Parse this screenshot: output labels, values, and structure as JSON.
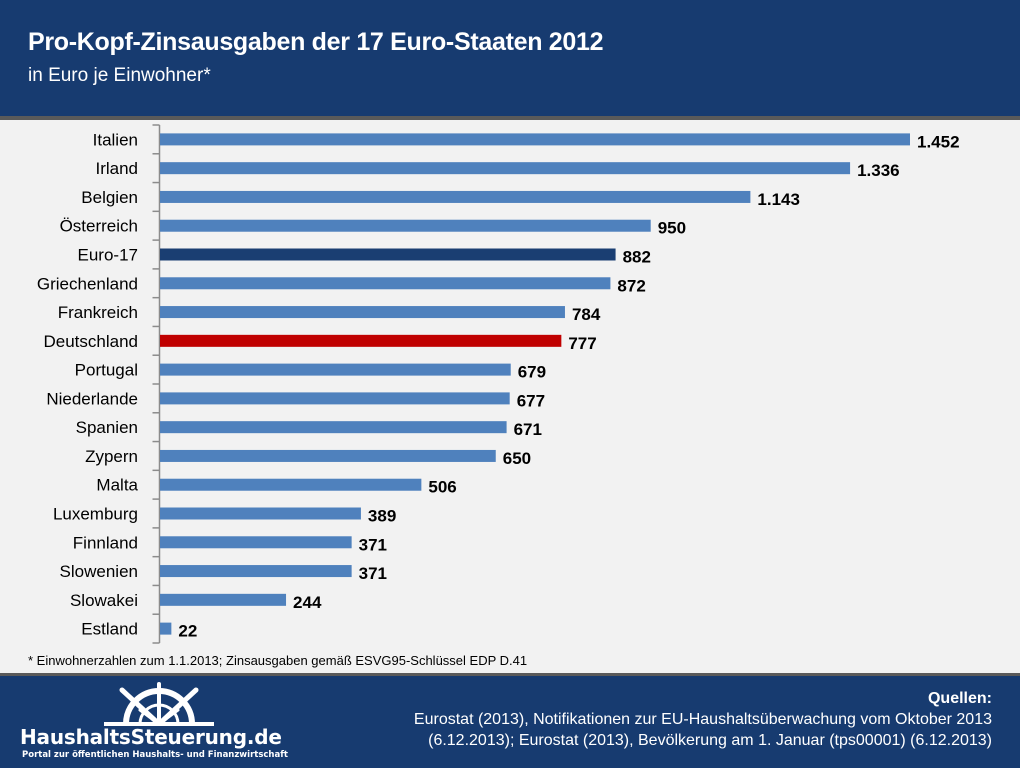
{
  "header": {
    "title": "Pro-Kopf-Zinsausgaben der 17 Euro-Staaten 2012",
    "subtitle": "in Euro je Einwohner*"
  },
  "chart_data": {
    "type": "bar",
    "orientation": "horizontal",
    "title": "Pro-Kopf-Zinsausgaben der 17 Euro-Staaten 2012",
    "subtitle": "in Euro je Einwohner*",
    "xlabel": "",
    "ylabel": "",
    "xlim": [
      0,
      1452
    ],
    "grid": false,
    "legend": "none",
    "categories": [
      "Italien",
      "Irland",
      "Belgien",
      "Österreich",
      "Euro-17",
      "Griechenland",
      "Frankreich",
      "Deutschland",
      "Portugal",
      "Niederlande",
      "Spanien",
      "Zypern",
      "Malta",
      "Luxemburg",
      "Finnland",
      "Slowenien",
      "Slowakei",
      "Estland"
    ],
    "values": [
      1452,
      1336,
      1143,
      950,
      882,
      872,
      784,
      777,
      679,
      677,
      671,
      650,
      506,
      389,
      371,
      371,
      244,
      22
    ],
    "value_labels": [
      "1.452",
      "1.336",
      "1.143",
      "950",
      "882",
      "872",
      "784",
      "777",
      "679",
      "677",
      "671",
      "650",
      "506",
      "389",
      "371",
      "371",
      "244",
      "22"
    ],
    "highlight": {
      "Euro-17": "#1a3e72",
      "Deutschland": "#c00000"
    },
    "default_color": "#4f81bd"
  },
  "footnote": "* Einwohnerzahlen  zum 1.1.2013; Zinsausgaben  gemäß ESVG95-Schlüssel  EDP D.41",
  "footer": {
    "logo_name": "HaushaltsSteuerung.de",
    "logo_tagline": "Portal zur öffentlichen Haushalts- und Finanzwirtschaft",
    "sources_title": "Quellen:",
    "sources_line1": "Eurostat (2013), Notifikationen zur EU-Haushaltsüberwachung vom Oktober 2013",
    "sources_line2": "(6.12.2013); Eurostat (2013), Bevölkerung am 1. Januar (tps00001) (6.12.2013)"
  },
  "colors": {
    "header_bg": "#173b70",
    "chart_bg": "#f2f2f2",
    "bar_default": "#4f81bd",
    "bar_euro17": "#1a3e72",
    "bar_germany": "#c00000"
  }
}
